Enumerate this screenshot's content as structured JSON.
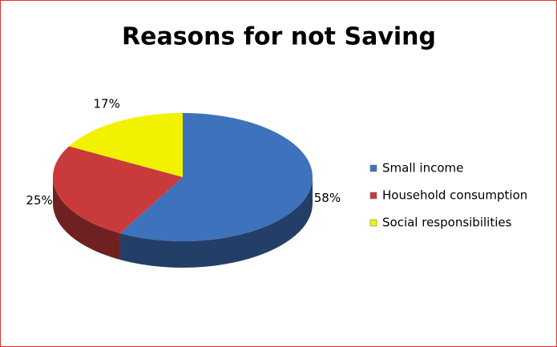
{
  "chart_data": {
    "type": "pie",
    "title": "Reasons for not Saving",
    "categories": [
      "Small income",
      "Household consumption",
      "Social responsibilities"
    ],
    "values": [
      58,
      25,
      17
    ],
    "value_labels": [
      "58%",
      "25%",
      "17%"
    ],
    "colors": [
      "#3f72bd",
      "#c93b3b",
      "#f2f200"
    ],
    "legend": "right"
  }
}
